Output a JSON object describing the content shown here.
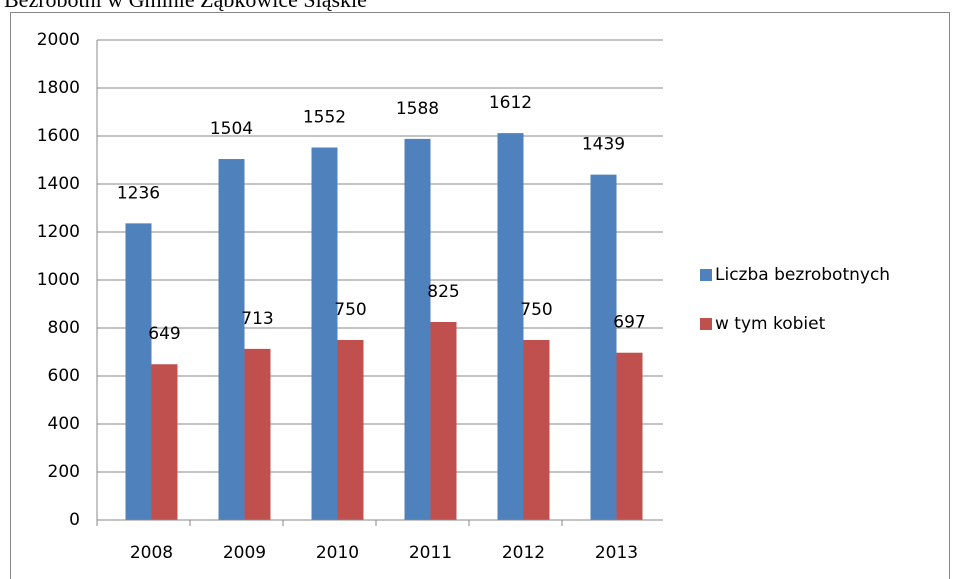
{
  "chart_data": {
    "type": "bar",
    "title": "Bezrobotni w Gminie Ząbkowice Śląskie",
    "categories": [
      "2008",
      "2009",
      "2010",
      "2011",
      "2012",
      "2013"
    ],
    "series": [
      {
        "name": "Liczba bezrobotnych",
        "color": "#4f81bd",
        "values": [
          1236,
          1504,
          1552,
          1588,
          1612,
          1439
        ]
      },
      {
        "name": "w tym kobiet",
        "color": "#c0504d",
        "values": [
          649,
          713,
          750,
          825,
          750,
          697
        ]
      }
    ],
    "ylim": [
      0,
      2000
    ],
    "yticks": [
      0,
      200,
      400,
      600,
      800,
      1000,
      1200,
      1400,
      1600,
      1800,
      2000
    ],
    "grid": true,
    "legend": "right"
  }
}
